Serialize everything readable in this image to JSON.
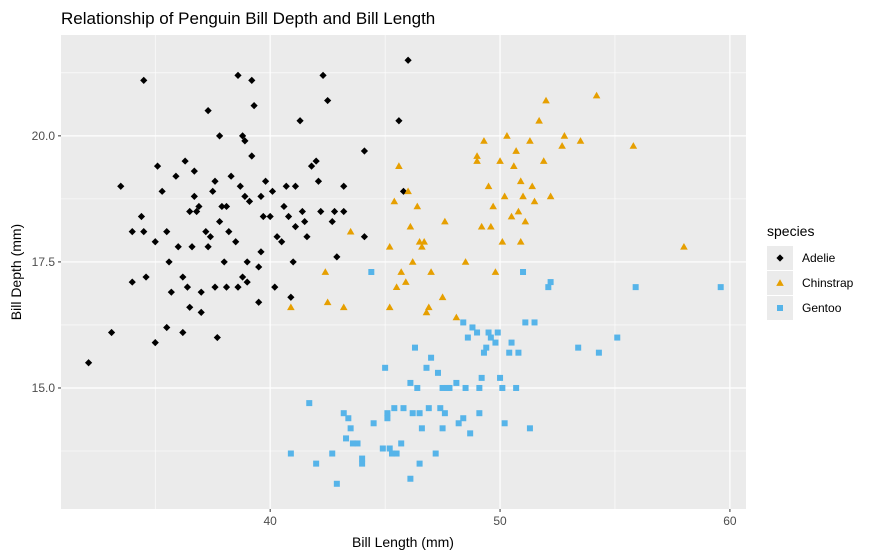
{
  "chart_data": {
    "type": "scatter",
    "title": "Relationship of Penguin Bill Depth and Bill Length",
    "xlabel": "Bill Length (mm)",
    "ylabel": "Bill Depth (mm)",
    "xlim": [
      30.9,
      60.7
    ],
    "ylim": [
      12.6,
      22.0
    ],
    "x_ticks": [
      40,
      50,
      60
    ],
    "x_tick_labels": [
      "40",
      "50",
      "60"
    ],
    "y_ticks": [
      15.0,
      17.5,
      20.0
    ],
    "y_tick_labels": [
      "15.0",
      "17.5",
      "20.0"
    ],
    "grid": true,
    "panel_background": "#ebebeb",
    "legend": {
      "title": "species",
      "placement": "right",
      "entries": [
        "Adelie",
        "Chinstrap",
        "Gentoo"
      ]
    },
    "series": [
      {
        "name": "Adelie",
        "color": "#000000",
        "shape": "diamond",
        "points": [
          [
            32.1,
            15.5
          ],
          [
            33.1,
            16.1
          ],
          [
            33.5,
            19.0
          ],
          [
            34.0,
            17.1
          ],
          [
            34.5,
            21.1
          ],
          [
            34.6,
            17.2
          ],
          [
            34.4,
            18.4
          ],
          [
            34.0,
            18.1
          ],
          [
            34.5,
            18.1
          ],
          [
            35.0,
            17.9
          ],
          [
            35.1,
            19.4
          ],
          [
            35.3,
            18.9
          ],
          [
            35.5,
            16.2
          ],
          [
            35.6,
            17.5
          ],
          [
            35.7,
            16.9
          ],
          [
            35.9,
            19.2
          ],
          [
            35.0,
            15.9
          ],
          [
            35.5,
            18.1
          ],
          [
            36.0,
            17.8
          ],
          [
            36.2,
            16.1
          ],
          [
            36.2,
            17.2
          ],
          [
            36.3,
            19.5
          ],
          [
            36.4,
            17.0
          ],
          [
            36.5,
            18.5
          ],
          [
            36.6,
            17.8
          ],
          [
            36.7,
            18.8
          ],
          [
            36.7,
            19.3
          ],
          [
            36.8,
            18.5
          ],
          [
            36.9,
            18.6
          ],
          [
            37.0,
            16.9
          ],
          [
            37.0,
            16.5
          ],
          [
            37.2,
            18.1
          ],
          [
            37.3,
            20.5
          ],
          [
            37.3,
            17.8
          ],
          [
            37.4,
            18.0
          ],
          [
            37.5,
            18.9
          ],
          [
            37.6,
            19.1
          ],
          [
            37.6,
            17.0
          ],
          [
            37.7,
            16.0
          ],
          [
            37.8,
            18.3
          ],
          [
            37.8,
            20.0
          ],
          [
            37.9,
            18.6
          ],
          [
            38.1,
            18.6
          ],
          [
            38.1,
            17.0
          ],
          [
            38.2,
            18.1
          ],
          [
            38.3,
            19.2
          ],
          [
            38.5,
            17.9
          ],
          [
            38.6,
            21.2
          ],
          [
            38.6,
            17.0
          ],
          [
            38.7,
            19.0
          ],
          [
            38.8,
            20.0
          ],
          [
            38.8,
            17.2
          ],
          [
            38.9,
            18.8
          ],
          [
            39.0,
            17.5
          ],
          [
            39.1,
            18.7
          ],
          [
            39.2,
            19.6
          ],
          [
            39.2,
            21.1
          ],
          [
            39.3,
            20.6
          ],
          [
            39.5,
            17.4
          ],
          [
            39.5,
            16.7
          ],
          [
            39.6,
            17.7
          ],
          [
            39.6,
            18.8
          ],
          [
            39.7,
            18.4
          ],
          [
            39.8,
            19.1
          ],
          [
            40.0,
            18.4
          ],
          [
            40.1,
            18.9
          ],
          [
            40.2,
            17.0
          ],
          [
            40.3,
            18.0
          ],
          [
            40.5,
            17.9
          ],
          [
            40.6,
            18.6
          ],
          [
            40.7,
            19.0
          ],
          [
            40.8,
            18.4
          ],
          [
            40.9,
            16.8
          ],
          [
            41.0,
            17.5
          ],
          [
            41.1,
            18.2
          ],
          [
            41.1,
            19.0
          ],
          [
            41.3,
            20.3
          ],
          [
            41.4,
            18.5
          ],
          [
            41.5,
            18.3
          ],
          [
            41.6,
            18.0
          ],
          [
            41.8,
            19.4
          ],
          [
            42.0,
            19.5
          ],
          [
            42.1,
            19.1
          ],
          [
            42.2,
            18.5
          ],
          [
            42.3,
            21.2
          ],
          [
            42.5,
            20.7
          ],
          [
            42.7,
            18.3
          ],
          [
            42.8,
            18.5
          ],
          [
            42.9,
            17.6
          ],
          [
            43.2,
            19.0
          ],
          [
            43.2,
            18.5
          ],
          [
            44.1,
            19.7
          ],
          [
            44.1,
            18.0
          ],
          [
            45.6,
            20.3
          ],
          [
            45.8,
            18.9
          ],
          [
            46.0,
            21.5
          ],
          [
            38.9,
            19.9
          ],
          [
            39.0,
            17.1
          ],
          [
            36.5,
            16.6
          ],
          [
            38.0,
            17.5
          ]
        ]
      },
      {
        "name": "Chinstrap",
        "color": "#e69f00",
        "shape": "triangle",
        "points": [
          [
            40.9,
            16.6
          ],
          [
            42.4,
            17.3
          ],
          [
            42.5,
            16.7
          ],
          [
            43.2,
            16.6
          ],
          [
            43.5,
            18.1
          ],
          [
            45.2,
            16.6
          ],
          [
            45.4,
            18.7
          ],
          [
            45.5,
            17.0
          ],
          [
            45.6,
            19.4
          ],
          [
            45.7,
            17.3
          ],
          [
            45.9,
            17.1
          ],
          [
            46.0,
            18.9
          ],
          [
            46.1,
            18.2
          ],
          [
            46.4,
            18.6
          ],
          [
            46.5,
            17.9
          ],
          [
            46.6,
            17.8
          ],
          [
            46.7,
            17.9
          ],
          [
            46.8,
            16.5
          ],
          [
            46.9,
            16.6
          ],
          [
            47.0,
            17.3
          ],
          [
            47.5,
            16.8
          ],
          [
            47.6,
            18.3
          ],
          [
            48.1,
            16.4
          ],
          [
            48.5,
            17.5
          ],
          [
            49.0,
            19.5
          ],
          [
            49.2,
            18.2
          ],
          [
            49.3,
            19.9
          ],
          [
            49.5,
            19.0
          ],
          [
            49.6,
            18.2
          ],
          [
            49.7,
            18.6
          ],
          [
            49.8,
            17.3
          ],
          [
            50.0,
            19.5
          ],
          [
            50.1,
            17.9
          ],
          [
            50.2,
            18.8
          ],
          [
            50.3,
            20.0
          ],
          [
            50.5,
            18.4
          ],
          [
            50.6,
            19.4
          ],
          [
            50.7,
            19.7
          ],
          [
            50.8,
            18.5
          ],
          [
            50.9,
            17.9
          ],
          [
            51.0,
            18.8
          ],
          [
            51.3,
            19.9
          ],
          [
            51.4,
            19.0
          ],
          [
            51.5,
            18.7
          ],
          [
            51.7,
            20.3
          ],
          [
            51.9,
            19.5
          ],
          [
            52.0,
            20.7
          ],
          [
            52.2,
            18.8
          ],
          [
            52.7,
            19.8
          ],
          [
            53.5,
            19.9
          ],
          [
            54.2,
            20.8
          ],
          [
            55.8,
            19.8
          ],
          [
            58.0,
            17.8
          ],
          [
            52.8,
            20.0
          ],
          [
            49.0,
            19.6
          ],
          [
            45.2,
            17.8
          ],
          [
            46.2,
            17.5
          ],
          [
            50.9,
            19.1
          ],
          [
            51.1,
            18.3
          ]
        ]
      },
      {
        "name": "Gentoo",
        "color": "#56b4e9",
        "shape": "square",
        "points": [
          [
            40.9,
            13.7
          ],
          [
            41.7,
            14.7
          ],
          [
            42.0,
            13.5
          ],
          [
            42.7,
            13.7
          ],
          [
            42.9,
            13.1
          ],
          [
            43.2,
            14.5
          ],
          [
            43.3,
            14.0
          ],
          [
            43.4,
            14.4
          ],
          [
            43.5,
            14.2
          ],
          [
            43.6,
            13.9
          ],
          [
            43.8,
            13.9
          ],
          [
            44.0,
            13.6
          ],
          [
            44.4,
            17.3
          ],
          [
            44.5,
            14.3
          ],
          [
            44.9,
            13.8
          ],
          [
            45.0,
            15.4
          ],
          [
            45.1,
            14.5
          ],
          [
            45.2,
            13.8
          ],
          [
            45.3,
            13.7
          ],
          [
            45.4,
            14.6
          ],
          [
            45.5,
            13.7
          ],
          [
            45.7,
            13.9
          ],
          [
            45.8,
            14.6
          ],
          [
            46.1,
            13.2
          ],
          [
            46.2,
            14.5
          ],
          [
            46.3,
            15.8
          ],
          [
            46.4,
            15.0
          ],
          [
            46.5,
            14.5
          ],
          [
            46.6,
            14.2
          ],
          [
            46.8,
            15.4
          ],
          [
            46.9,
            14.6
          ],
          [
            47.0,
            15.6
          ],
          [
            47.2,
            13.7
          ],
          [
            47.3,
            15.3
          ],
          [
            47.4,
            14.6
          ],
          [
            47.5,
            15.0
          ],
          [
            47.6,
            14.5
          ],
          [
            47.7,
            15.0
          ],
          [
            47.8,
            15.0
          ],
          [
            48.1,
            15.1
          ],
          [
            48.2,
            14.3
          ],
          [
            48.4,
            14.4
          ],
          [
            48.5,
            15.0
          ],
          [
            48.6,
            16.0
          ],
          [
            48.7,
            14.1
          ],
          [
            48.8,
            16.2
          ],
          [
            49.0,
            16.1
          ],
          [
            49.1,
            15.0
          ],
          [
            49.2,
            15.2
          ],
          [
            49.3,
            15.7
          ],
          [
            49.4,
            15.8
          ],
          [
            49.5,
            16.1
          ],
          [
            49.6,
            16.0
          ],
          [
            49.8,
            15.9
          ],
          [
            49.9,
            16.1
          ],
          [
            50.0,
            15.2
          ],
          [
            50.1,
            15.0
          ],
          [
            50.2,
            14.3
          ],
          [
            50.4,
            15.7
          ],
          [
            50.5,
            15.9
          ],
          [
            50.7,
            15.0
          ],
          [
            50.8,
            15.7
          ],
          [
            51.1,
            16.3
          ],
          [
            51.3,
            14.2
          ],
          [
            51.5,
            16.3
          ],
          [
            52.1,
            17.0
          ],
          [
            52.2,
            17.1
          ],
          [
            53.4,
            15.8
          ],
          [
            54.3,
            15.7
          ],
          [
            55.1,
            16.0
          ],
          [
            55.9,
            17.0
          ],
          [
            59.6,
            17.0
          ],
          [
            45.1,
            14.4
          ],
          [
            46.5,
            13.5
          ],
          [
            47.5,
            14.2
          ],
          [
            49.1,
            14.5
          ],
          [
            48.4,
            16.3
          ],
          [
            51.0,
            17.3
          ],
          [
            46.1,
            15.1
          ],
          [
            44.0,
            13.5
          ]
        ]
      }
    ]
  }
}
